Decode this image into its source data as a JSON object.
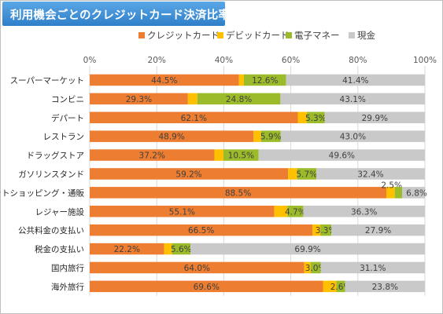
{
  "title": "利用機会ごとのクレジットカード決済比率",
  "chart_data": {
    "type": "bar",
    "orientation": "horizontal",
    "stacked": true,
    "xlim": [
      0,
      100
    ],
    "xticks": [
      "0%",
      "20%",
      "40%",
      "60%",
      "80%",
      "100%"
    ],
    "grid": true,
    "legend_position": "top",
    "categories": [
      "スーパーマーケット",
      "コンビニ",
      "デパート",
      "レストラン",
      "ドラッグストア",
      "ガソリンスタンド",
      "ネットショッピング・通販",
      "レジャー施設",
      "公共料金の支払い",
      "税金の支払い",
      "国内旅行",
      "海外旅行"
    ],
    "series": [
      {
        "name": "クレジットカード",
        "color": "#ed7d31",
        "values": [
          44.5,
          29.3,
          62.1,
          48.9,
          37.2,
          59.2,
          88.5,
          55.1,
          66.5,
          22.2,
          64.0,
          69.6
        ]
      },
      {
        "name": "デビッドカード",
        "color": "#ffc000",
        "values": [
          1.5,
          2.8,
          2.7,
          2.2,
          2.7,
          2.7,
          2.5,
          3.9,
          2.3,
          2.3,
          1.9,
          4.0
        ]
      },
      {
        "name": "電子マネー",
        "color": "#9bbb2a",
        "values": [
          12.6,
          24.8,
          5.3,
          5.9,
          10.5,
          5.7,
          2.2,
          4.7,
          3.3,
          5.6,
          3.0,
          2.6
        ]
      },
      {
        "name": "現金",
        "color": "#c9c9c9",
        "values": [
          41.4,
          43.1,
          29.9,
          43.0,
          49.6,
          32.4,
          6.8,
          36.3,
          27.9,
          69.9,
          31.1,
          23.8
        ]
      }
    ],
    "data_labels": [
      [
        "44.5%",
        "",
        "12.6%",
        "41.4%"
      ],
      [
        "29.3%",
        "",
        "24.8%",
        "43.1%"
      ],
      [
        "62.1%",
        "",
        "5.3%",
        "29.9%"
      ],
      [
        "48.9%",
        "",
        "5.9%",
        "43.0%"
      ],
      [
        "37.2%",
        "",
        "10.5%",
        "49.6%"
      ],
      [
        "59.2%",
        "",
        "5.7%",
        "32.4%"
      ],
      [
        "88.5%",
        "2.5%",
        "",
        "6.8%"
      ],
      [
        "55.1%",
        "",
        "4.7%",
        "36.3%"
      ],
      [
        "66.5%",
        "",
        "3.3%",
        "27.9%"
      ],
      [
        "22.2%",
        "",
        "5.6%",
        "69.9%"
      ],
      [
        "64.0%",
        "",
        "3.0%",
        "31.1%"
      ],
      [
        "69.6%",
        "",
        "2.6%",
        "23.8%"
      ]
    ]
  }
}
